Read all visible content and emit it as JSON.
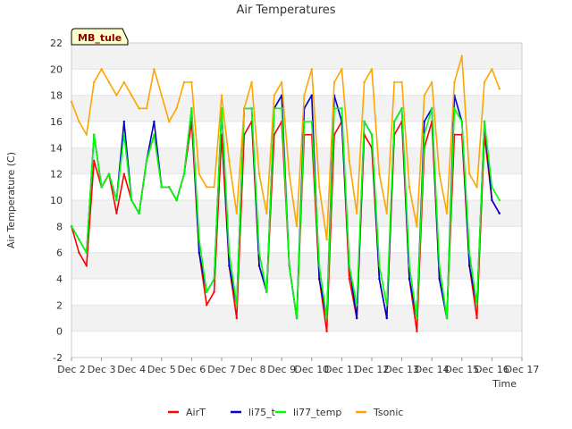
{
  "chart_data": {
    "type": "line",
    "title": "Air Temperatures",
    "xlabel": "Time",
    "ylabel": "Air Temperature (C)",
    "site_label": "MB_tule",
    "xlim": [
      2,
      17
    ],
    "ylim": [
      -2,
      22
    ],
    "x_ticks": [
      2,
      3,
      4,
      5,
      6,
      7,
      8,
      9,
      10,
      11,
      12,
      13,
      14,
      15,
      16,
      17
    ],
    "x_tick_labels": [
      "Dec 2",
      "Dec 3",
      "Dec 4",
      "Dec 5",
      "Dec 6",
      "Dec 7",
      "Dec 8",
      "Dec 9",
      "Dec 10",
      "Dec 11",
      "Dec 12",
      "Dec 13",
      "Dec 14",
      "Dec 15",
      "Dec 16",
      "Dec 17"
    ],
    "y_ticks": [
      -2,
      0,
      2,
      4,
      6,
      8,
      10,
      12,
      14,
      16,
      18,
      20,
      22
    ],
    "grid": "horizontal bands",
    "legend_position": "bottom",
    "x": [
      2.0,
      2.25,
      2.5,
      2.75,
      3.0,
      3.25,
      3.5,
      3.75,
      4.0,
      4.25,
      4.5,
      4.75,
      5.0,
      5.25,
      5.5,
      5.75,
      6.0,
      6.25,
      6.5,
      6.75,
      7.0,
      7.25,
      7.5,
      7.75,
      8.0,
      8.25,
      8.5,
      8.75,
      9.0,
      9.25,
      9.5,
      9.75,
      10.0,
      10.25,
      10.5,
      10.75,
      11.0,
      11.25,
      11.5,
      11.75,
      12.0,
      12.25,
      12.5,
      12.75,
      13.0,
      13.25,
      13.5,
      13.75,
      14.0,
      14.25,
      14.5,
      14.75,
      15.0,
      15.25,
      15.5,
      15.75,
      16.0,
      16.25
    ],
    "series": [
      {
        "name": "AirT",
        "color": "#ff0000",
        "values": [
          8,
          6,
          5,
          13,
          11,
          12,
          9,
          12,
          10,
          9,
          13,
          15,
          11,
          11,
          10,
          12,
          16,
          6,
          2,
          3,
          15,
          5,
          1,
          15,
          16,
          5,
          3,
          15,
          16,
          5,
          1,
          15,
          15,
          4,
          0,
          15,
          16,
          4,
          1,
          15,
          14,
          4,
          1,
          15,
          16,
          4,
          0,
          14,
          16,
          4,
          1,
          15,
          15,
          5,
          1,
          15,
          10,
          9
        ]
      },
      {
        "name": "li75_t",
        "color": "#0000cc",
        "values": [
          8,
          7,
          6,
          15,
          11,
          12,
          10,
          16,
          10,
          9,
          13,
          16,
          11,
          11,
          10,
          12,
          17,
          6,
          3,
          4,
          17,
          5,
          2,
          17,
          17,
          5,
          3,
          17,
          18,
          5,
          1,
          17,
          18,
          4,
          1,
          18,
          16,
          5,
          1,
          16,
          15,
          4,
          1,
          16,
          17,
          4,
          1,
          16,
          17,
          4,
          1,
          18,
          16,
          5,
          2,
          16,
          10,
          9
        ]
      },
      {
        "name": "li77_temp",
        "color": "#00ff00",
        "values": [
          8,
          7,
          6,
          15,
          11,
          12,
          10,
          15,
          10,
          9,
          13,
          15,
          11,
          11,
          10,
          12,
          17,
          7,
          3,
          4,
          17,
          6,
          2,
          17,
          17,
          6,
          3,
          17,
          17,
          5,
          1,
          16,
          16,
          5,
          1,
          17,
          17,
          5,
          2,
          16,
          15,
          5,
          2,
          16,
          17,
          5,
          1,
          15,
          17,
          5,
          1,
          17,
          16,
          6,
          2,
          16,
          11,
          10
        ]
      },
      {
        "name": "Tsonic",
        "color": "#ffa500",
        "values": [
          17.5,
          16,
          15,
          19,
          20,
          19,
          18,
          19,
          18,
          17,
          17,
          20,
          18,
          16,
          17,
          19,
          19,
          12,
          11,
          11,
          18,
          13,
          9,
          17,
          19,
          12,
          9,
          18,
          19,
          12,
          8,
          18,
          20,
          11,
          7,
          19,
          20,
          13,
          9,
          19,
          20,
          12,
          9,
          19,
          19,
          11,
          8,
          18,
          19,
          12,
          9,
          19,
          21,
          12,
          11,
          19,
          20,
          18.5
        ]
      }
    ]
  }
}
